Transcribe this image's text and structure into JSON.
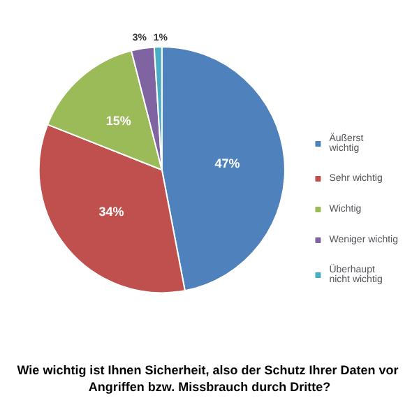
{
  "chart_data": {
    "type": "pie",
    "title": "Wie wichtig ist Ihnen Sicherheit, also der Schutz Ihrer Daten vor Angriffen bzw. Missbrauch durch Dritte?",
    "categories": [
      "Äußerst wichtig",
      "Sehr wichtig",
      "Wichtig",
      "Weniger wichtig",
      "Überhaupt nicht wichtig"
    ],
    "values": [
      47,
      34,
      15,
      3,
      1
    ],
    "value_labels": [
      "47%",
      "34%",
      "15%",
      "3%",
      "1%"
    ],
    "colors": [
      "#4f81bd",
      "#c0504d",
      "#9bbb59",
      "#8064a2",
      "#4bacc6"
    ],
    "legend": "right"
  }
}
